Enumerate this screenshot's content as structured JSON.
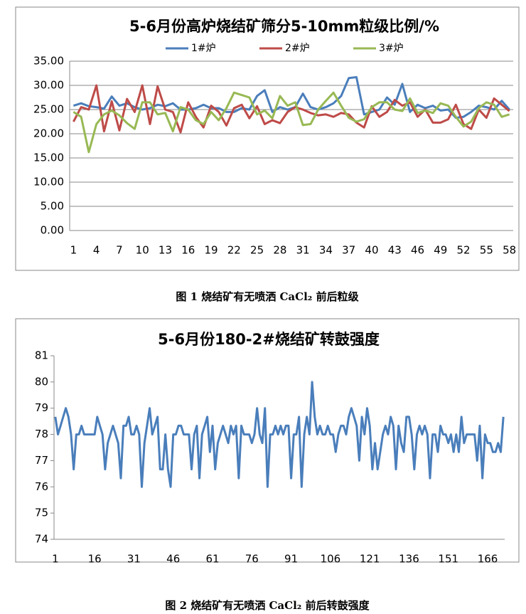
{
  "chart_data": [
    {
      "type": "line",
      "title": "5-6月份高炉烧结矿筛分5-10mm粒级比例/%",
      "caption": "图 1 烧结矿有无喷洒 CaCl₂ 前后粒级",
      "categories": [
        1,
        null,
        null,
        4,
        null,
        null,
        7,
        null,
        null,
        10,
        null,
        null,
        13,
        null,
        null,
        16,
        null,
        null,
        19,
        null,
        null,
        22,
        null,
        null,
        25,
        null,
        null,
        28,
        null,
        null,
        31,
        null,
        null,
        34,
        null,
        null,
        37,
        null,
        null,
        40,
        null,
        null,
        43,
        null,
        null,
        46,
        null,
        null,
        49,
        null,
        null,
        52,
        null,
        null,
        55,
        null,
        null,
        58
      ],
      "series": [
        {
          "name": "1#炉",
          "color": "#4a7ebb",
          "values": [
            25.8,
            26.3,
            25.7,
            25.5,
            25.2,
            27.7,
            25.8,
            26.3,
            25.5,
            25,
            25.3,
            26,
            25.7,
            26.3,
            25,
            25,
            25.3,
            26,
            25.3,
            25.3,
            24.5,
            24.5,
            25.3,
            25,
            27.8,
            29,
            24.5,
            25.5,
            25,
            25.5,
            28.3,
            25.5,
            25,
            25.5,
            26.3,
            27.8,
            31.5,
            31.7,
            24,
            24.5,
            25,
            27.5,
            26,
            30.3,
            24.5,
            26,
            25.3,
            25.8,
            24.8,
            25,
            23.3,
            23.5,
            24.5,
            25.8,
            25.5,
            25,
            26.8,
            25
          ]
        },
        {
          "name": "2#炉",
          "color": "#be4b48",
          "values": [
            22.5,
            25.5,
            25,
            30,
            20.5,
            26.7,
            20.7,
            27.2,
            24.5,
            30,
            22,
            29.8,
            25,
            24.5,
            20.3,
            26.5,
            23.5,
            21.3,
            25.8,
            24.5,
            21.7,
            25.3,
            26,
            23.2,
            25.7,
            22,
            22.8,
            22.2,
            24.5,
            25.5,
            25,
            24.3,
            23.8,
            24,
            23.5,
            24.3,
            24,
            22.3,
            21.3,
            25.7,
            23.5,
            24.5,
            27,
            25.8,
            26.5,
            23.5,
            25,
            22.3,
            22.3,
            23,
            26,
            22,
            21,
            25,
            23.3,
            27.3,
            26,
            24.7
          ]
        },
        {
          "name": "3#炉",
          "color": "#98b954",
          "values": [
            24.5,
            23.5,
            16.2,
            22,
            24,
            24.8,
            23.8,
            22.2,
            21,
            26.5,
            26.5,
            24,
            24.3,
            20.5,
            25.5,
            25,
            22.8,
            22,
            24.5,
            22.8,
            25.3,
            28.5,
            28,
            27.5,
            24,
            24.8,
            23.2,
            27.8,
            25.8,
            26.5,
            21.8,
            22,
            25,
            26.8,
            28.5,
            25.8,
            23.3,
            22.5,
            23,
            25.5,
            26.5,
            26.5,
            25,
            24.7,
            27.3,
            24.3,
            24.8,
            24.3,
            26.3,
            25.8,
            23.5,
            21.5,
            22.5,
            25.3,
            26.5,
            26,
            23.5,
            24
          ]
        }
      ],
      "ylim": [
        0,
        35
      ],
      "yticks": [
        {
          "value": 0,
          "label": "0.00"
        },
        {
          "value": 5,
          "label": "5.00"
        },
        {
          "value": 10,
          "label": "10.00"
        },
        {
          "value": 15,
          "label": "15.00"
        },
        {
          "value": 20,
          "label": "20.00"
        },
        {
          "value": 25,
          "label": "25.00"
        },
        {
          "value": 30,
          "label": "30.00"
        },
        {
          "value": 35,
          "label": "35.00"
        }
      ],
      "grid": true,
      "legend": "top"
    },
    {
      "type": "line",
      "title": "5-6月份180-2#烧结矿转鼓强度",
      "caption": "图 2 烧结矿有无喷洒 CaCl₂ 前后转鼓强度",
      "categories": [
        1,
        null,
        null,
        null,
        null,
        null,
        null,
        null,
        null,
        null,
        null,
        null,
        null,
        null,
        null,
        16,
        null,
        null,
        null,
        null,
        null,
        null,
        null,
        null,
        null,
        null,
        null,
        null,
        null,
        null,
        31,
        null,
        null,
        null,
        null,
        null,
        null,
        null,
        null,
        null,
        null,
        null,
        null,
        null,
        null,
        46,
        null,
        null,
        null,
        null,
        null,
        null,
        null,
        null,
        null,
        null,
        null,
        null,
        null,
        null,
        61,
        null,
        null,
        null,
        null,
        null,
        null,
        null,
        null,
        null,
        null,
        null,
        null,
        null,
        null,
        76,
        null,
        null,
        null,
        null,
        null,
        null,
        null,
        null,
        null,
        null,
        null,
        null,
        null,
        null,
        91,
        null,
        null,
        null,
        null,
        null,
        null,
        null,
        null,
        null,
        null,
        null,
        null,
        null,
        null,
        106,
        null,
        null,
        null,
        null,
        null,
        null,
        null,
        null,
        null,
        null,
        null,
        null,
        null,
        null,
        121,
        null,
        null,
        null,
        null,
        null,
        null,
        null,
        null,
        null,
        null,
        null,
        null,
        null,
        null,
        136,
        null,
        null,
        null,
        null,
        null,
        null,
        null,
        null,
        null,
        null,
        null,
        null,
        null,
        null,
        151,
        null,
        null,
        null,
        null,
        null,
        null,
        null,
        null,
        null,
        null,
        null,
        null,
        null,
        null,
        166,
        null,
        null,
        null,
        null,
        null,
        null
      ],
      "color": "#4a7ebb",
      "values": [
        78.67,
        78,
        78.33,
        78.67,
        79,
        78.67,
        78,
        76.67,
        78,
        78,
        78.33,
        78,
        78,
        78,
        78,
        78,
        78.67,
        78.33,
        78,
        76.67,
        77.67,
        78,
        78.33,
        78,
        77.67,
        76.33,
        78.33,
        78.33,
        78.67,
        78,
        78,
        78.33,
        78,
        76,
        77.67,
        78.33,
        79,
        78,
        78.33,
        78.67,
        76.67,
        76.67,
        78,
        76.67,
        76,
        78,
        78,
        78.33,
        78.33,
        78,
        78,
        78,
        76.67,
        78,
        78.33,
        76.33,
        78,
        78.33,
        78.67,
        77.33,
        78.33,
        76.67,
        77.67,
        78,
        78.33,
        78,
        77.67,
        78.33,
        78,
        78.33,
        76.33,
        78.33,
        78,
        78,
        78,
        77.67,
        78,
        79,
        78,
        77.67,
        79,
        76,
        78,
        78,
        78.33,
        78,
        78.33,
        78,
        78.33,
        78.33,
        76.33,
        78,
        78,
        78.67,
        76,
        78,
        78.67,
        78,
        80,
        78.67,
        78,
        78.33,
        78,
        78,
        78.33,
        78,
        78,
        77.33,
        78,
        78.33,
        78.33,
        78,
        78.67,
        79,
        78.67,
        78.33,
        77,
        78.67,
        78,
        79,
        78.33,
        76.67,
        77.67,
        76.67,
        77.33,
        78,
        78.33,
        78,
        78.67,
        78.33,
        76.67,
        78.33,
        77.67,
        77.33,
        78.67,
        78.67,
        78,
        76.67,
        78,
        78.33,
        78,
        78.33,
        78,
        76.33,
        78,
        78,
        77.33,
        78.33,
        78,
        78,
        77.67,
        78,
        77.33,
        78,
        77.33,
        78.67,
        77.67,
        78,
        78,
        78,
        78,
        77,
        78.33,
        76.33,
        78,
        77.67,
        77.67,
        77.33,
        77.33,
        77.67,
        77.33,
        78.67
      ],
      "ylim": [
        74,
        81
      ],
      "yticks": [
        74,
        75,
        76,
        77,
        78,
        79,
        80,
        81
      ],
      "grid": false
    }
  ]
}
